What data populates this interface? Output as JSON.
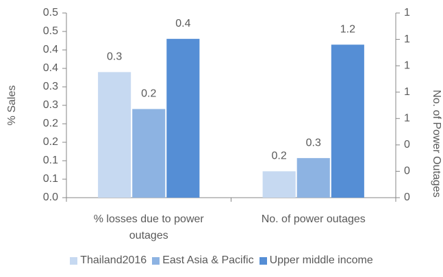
{
  "chart_data": {
    "type": "bar",
    "categories": [
      "% losses due to power outages",
      "No. of power outages"
    ],
    "category_axis": [
      "y",
      "y2"
    ],
    "series": [
      {
        "name": "Thailand2016",
        "color": "#c6d9f1",
        "values": [
          0.34,
          0.2
        ],
        "value_labels": [
          "0.3",
          "0.2"
        ]
      },
      {
        "name": "East Asia & Pacific",
        "color": "#8db3e2",
        "values": [
          0.24,
          0.3
        ],
        "value_labels": [
          "0.2",
          "0.3"
        ]
      },
      {
        "name": "Upper middle income",
        "color": "#558ed5",
        "values": [
          0.43,
          1.16
        ],
        "value_labels": [
          "0.4",
          "1.2"
        ]
      }
    ],
    "ylabel": "%  Sales",
    "y2label": "No. of Power Outages",
    "ylim": [
      0,
      0.5
    ],
    "yticks": [
      {
        "value": 0,
        "label": "0.0"
      },
      {
        "value": 0.05,
        "label": "0.1"
      },
      {
        "value": 0.1,
        "label": "0.1"
      },
      {
        "value": 0.15,
        "label": "0.2"
      },
      {
        "value": 0.2,
        "label": "0.2"
      },
      {
        "value": 0.25,
        "label": "0.3"
      },
      {
        "value": 0.3,
        "label": "0.3"
      },
      {
        "value": 0.35,
        "label": "0.4"
      },
      {
        "value": 0.4,
        "label": "0.4"
      },
      {
        "value": 0.45,
        "label": "0.5"
      },
      {
        "value": 0.5,
        "label": "0.5"
      }
    ],
    "y2lim": [
      0,
      1.4
    ],
    "y2ticks": [
      {
        "value": 0,
        "label": "0"
      },
      {
        "value": 0.2,
        "label": "0"
      },
      {
        "value": 0.4,
        "label": "0"
      },
      {
        "value": 0.6,
        "label": "1"
      },
      {
        "value": 0.8,
        "label": "1"
      },
      {
        "value": 1.0,
        "label": "1"
      },
      {
        "value": 1.2,
        "label": "1"
      },
      {
        "value": 1.4,
        "label": "1"
      }
    ],
    "grid": false,
    "legend": "bottom"
  }
}
